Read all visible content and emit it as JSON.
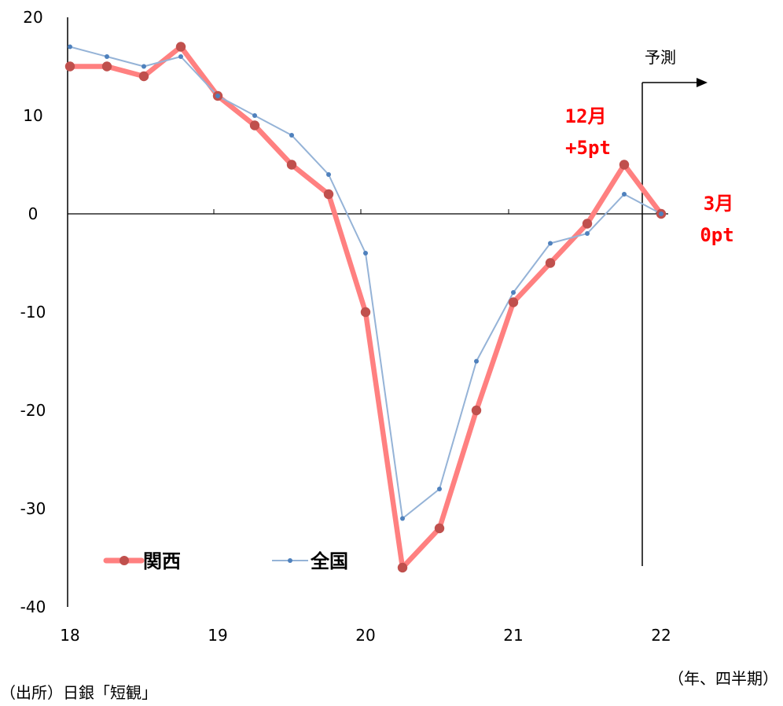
{
  "chart_data": {
    "type": "line",
    "x": [
      18.0,
      18.25,
      18.5,
      18.75,
      19.0,
      19.25,
      19.5,
      19.75,
      20.0,
      20.25,
      20.5,
      20.75,
      21.0,
      21.25,
      21.5,
      21.75,
      22.0
    ],
    "series": [
      {
        "name": "関西",
        "color": "#ff8080",
        "marker_color": "#c0504d",
        "values": [
          15,
          15,
          14,
          17,
          12,
          9,
          5,
          2,
          -10,
          -36,
          -32,
          -20,
          -9,
          -5,
          -1,
          5,
          0
        ]
      },
      {
        "name": "全国",
        "color": "#95b3d7",
        "marker_color": "#4f81bd",
        "values": [
          17,
          16,
          15,
          16,
          12,
          10,
          8,
          4,
          -4,
          -31,
          -28,
          -15,
          -8,
          -3,
          -2,
          2,
          0
        ]
      }
    ],
    "xlim": [
      18,
      22
    ],
    "ylim": [
      -40,
      20
    ],
    "y_ticks": [
      20,
      10,
      0,
      -10,
      -20,
      -30,
      -40
    ],
    "x_ticks": [
      18,
      19,
      20,
      21,
      22
    ],
    "x_tick_labels": [
      "18",
      "19",
      "20",
      "21",
      "22"
    ],
    "xlabel": "（年、四半期）",
    "source": "（出所）日銀「短観」",
    "forecast_label": "予測",
    "annotations": [
      {
        "text": [
          "12月",
          "+5pt"
        ],
        "color": "#ff0000"
      },
      {
        "text": [
          "3月",
          "0pt"
        ],
        "color": "#ff0000"
      }
    ],
    "legend": "lower-left",
    "grid": false
  }
}
